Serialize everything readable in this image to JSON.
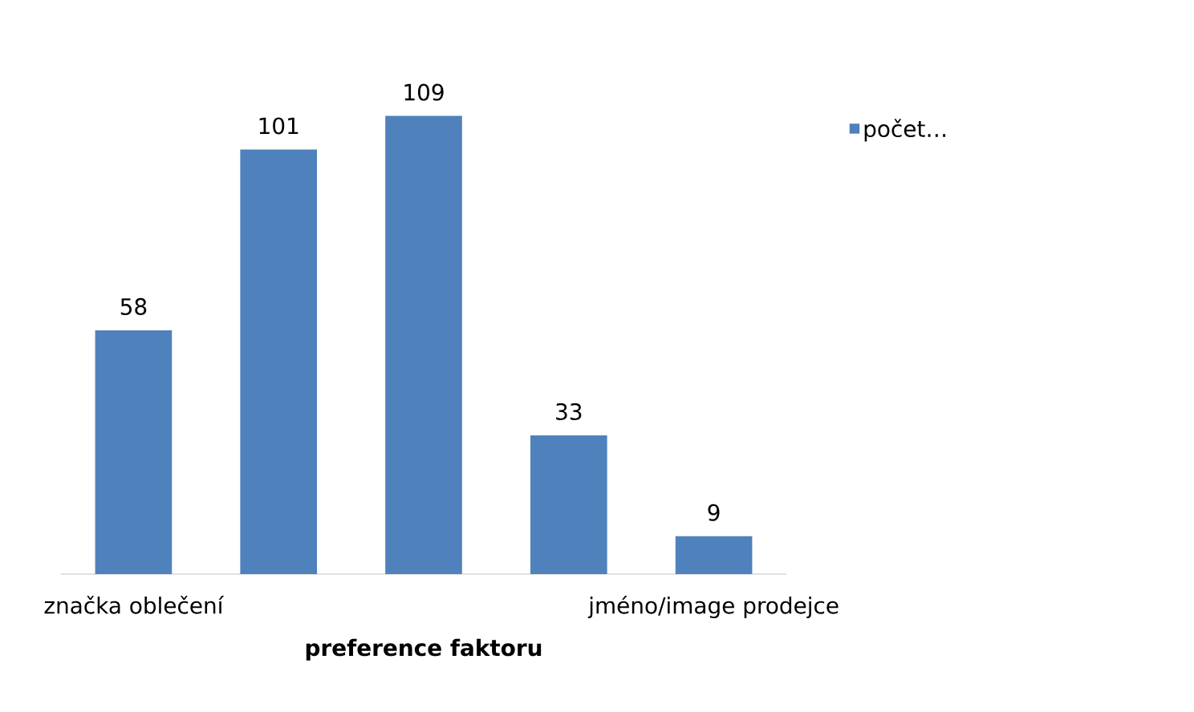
{
  "chart_data": {
    "type": "bar",
    "xlabel": "preference faktoru",
    "categories": [
      "značka oblečení",
      null,
      null,
      null,
      "jméno/image prodejce"
    ],
    "series": [
      {
        "name": "počet…",
        "color": "#4f81bd",
        "values": [
          58,
          101,
          109,
          33,
          9
        ]
      }
    ],
    "data_labels": true,
    "legend": "right"
  }
}
